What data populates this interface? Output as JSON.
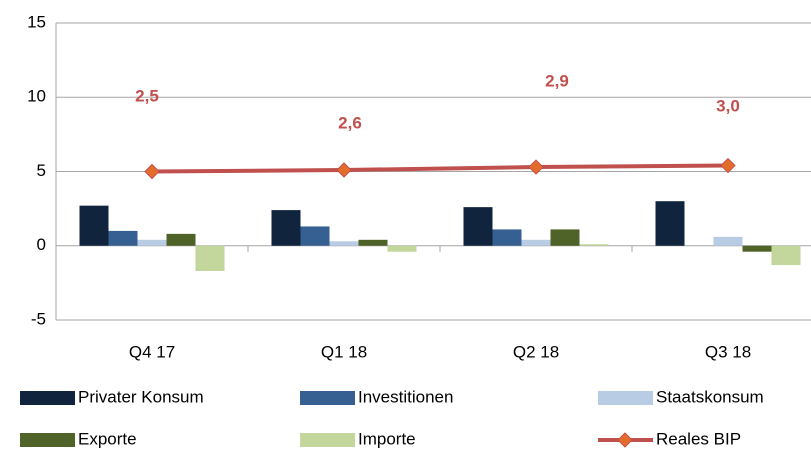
{
  "chart_data": {
    "type": "bar",
    "categories": [
      "Q4 17",
      "Q1 18",
      "Q2 18",
      "Q3 18"
    ],
    "series": [
      {
        "name": "Privater Konsum",
        "color": "#10243e",
        "values": [
          2.7,
          2.4,
          2.6,
          3.0
        ]
      },
      {
        "name": "Investitionen",
        "color": "#366092",
        "values": [
          1.0,
          1.3,
          1.1,
          0.0
        ]
      },
      {
        "name": "Staatskonsum",
        "color": "#b8cce4",
        "values": [
          0.4,
          0.3,
          0.4,
          0.6
        ]
      },
      {
        "name": "Exporte",
        "color": "#4f6228",
        "values": [
          0.8,
          0.4,
          1.1,
          -0.4
        ]
      },
      {
        "name": "Importe",
        "color": "#c3d69b",
        "values": [
          -1.7,
          -0.4,
          0.1,
          -1.3
        ]
      },
      {
        "name": "Reales BIP",
        "type": "line",
        "color": "#c0504d",
        "marker_color": "#e46c2a",
        "values": [
          5.0,
          5.1,
          5.3,
          5.4
        ]
      }
    ],
    "annotations": [
      "2,5",
      "2,6",
      "2,9",
      "3,0"
    ],
    "annotation_color": "#c0504d",
    "ylim": [
      -5,
      15
    ],
    "yticks": [
      -5,
      0,
      5,
      10,
      15
    ],
    "grid": true
  }
}
